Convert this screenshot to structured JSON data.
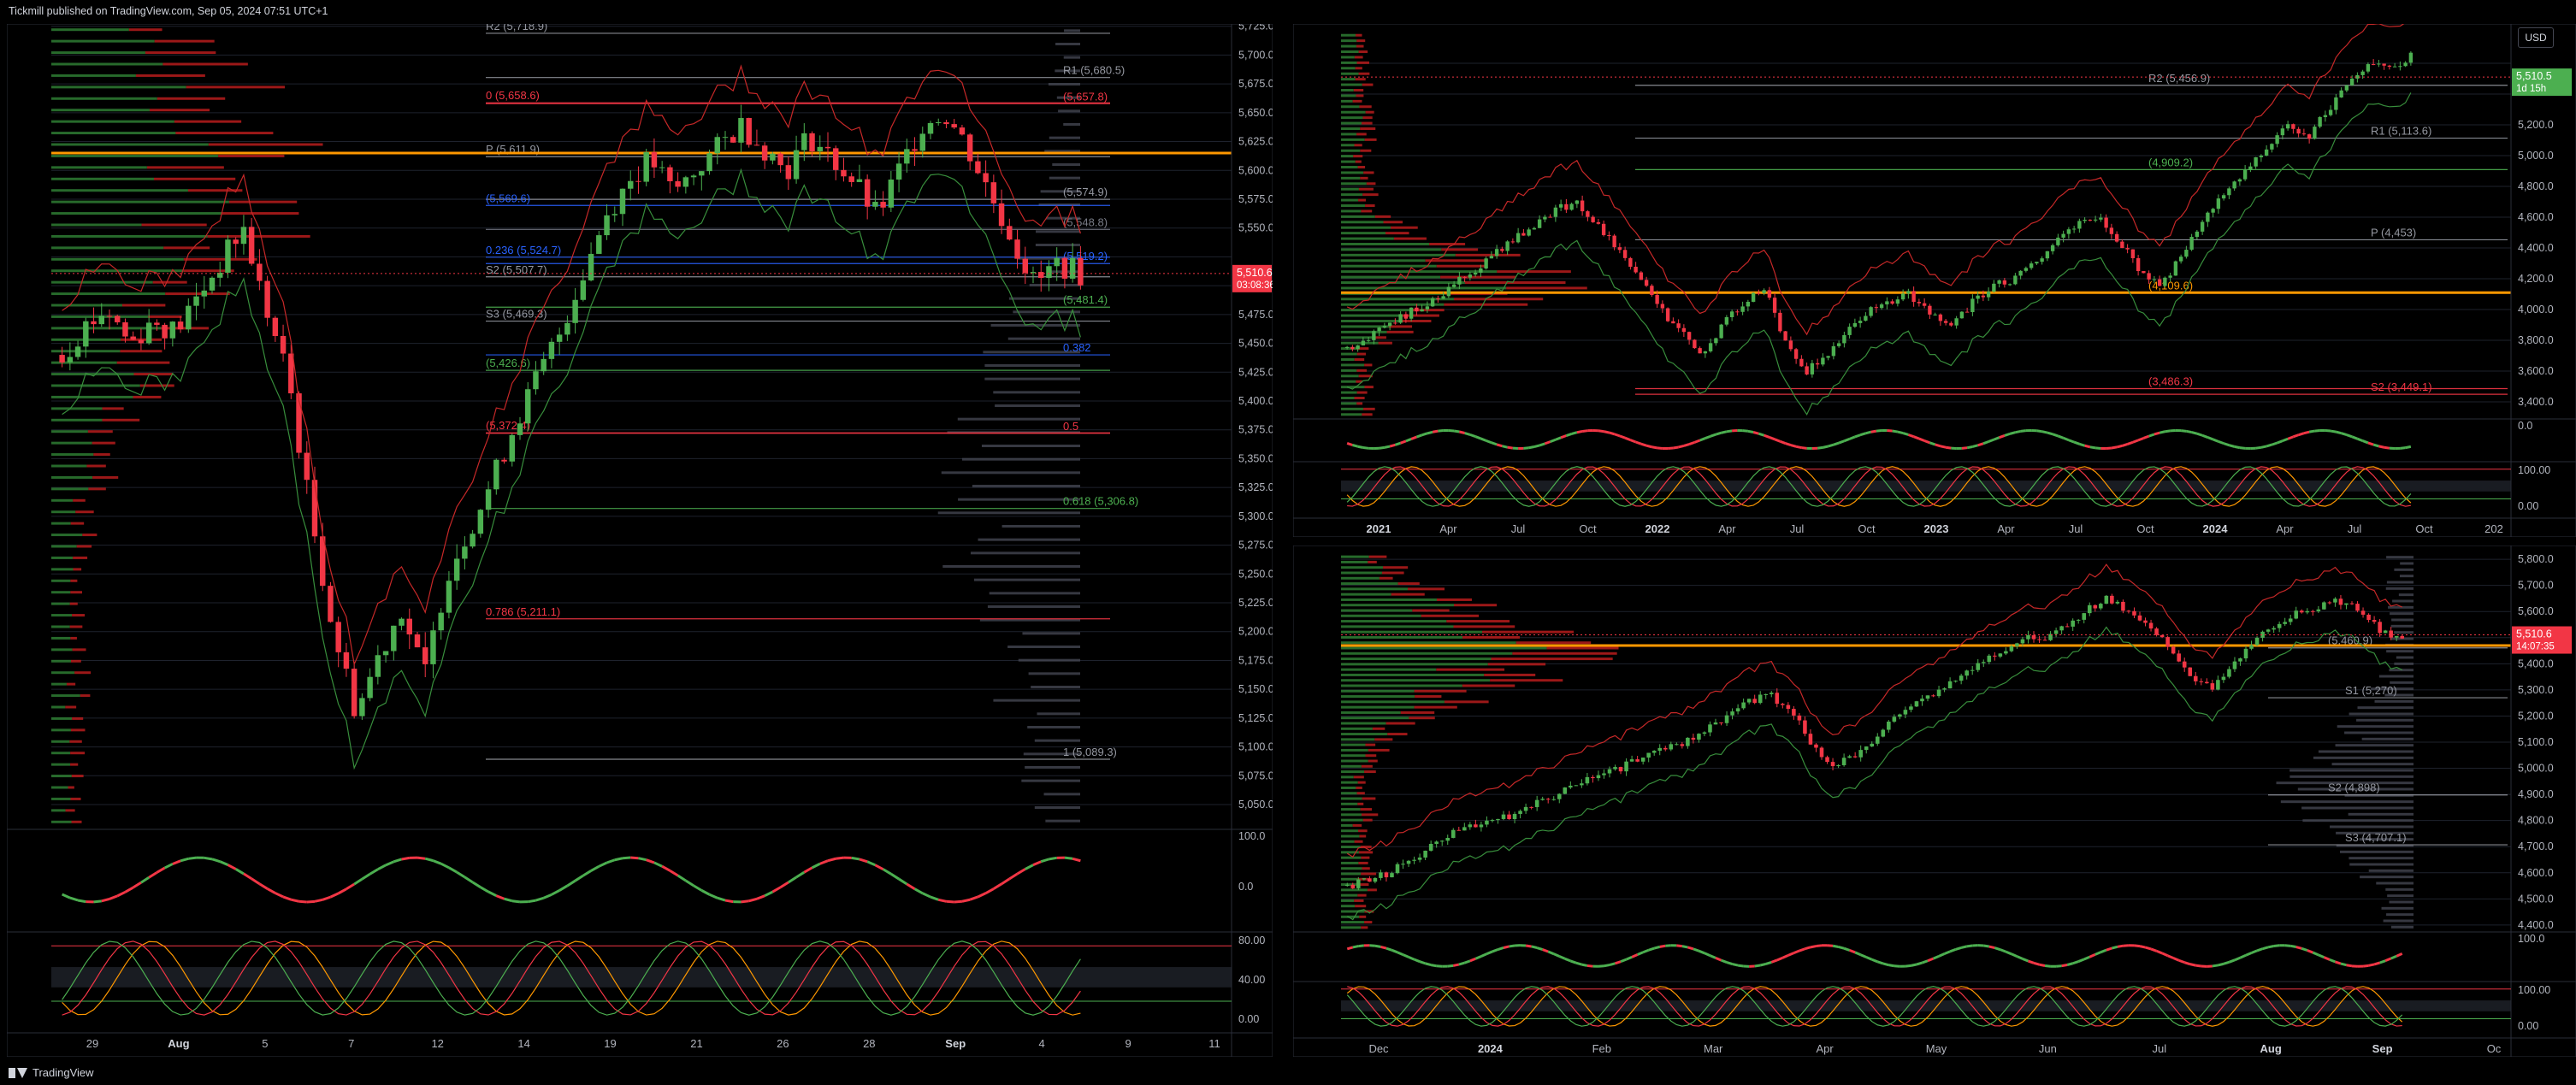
{
  "header": {
    "published_text": "Tickmill published on TradingView.com, Sep 05, 2024 07:51 UTC+1"
  },
  "footer": {
    "brand": "TradingView",
    "logo_icon": "tradingview-logo-icon"
  },
  "top_right": {
    "currency_button": "USD"
  },
  "colors": {
    "bg": "#000000",
    "bull": "#4caf50",
    "bear": "#f23645",
    "orange": "#ff9800",
    "grid": "#1e222d",
    "gray": "#787b86",
    "blue": "#2962ff"
  },
  "chart_data": [
    {
      "id": "left",
      "type": "candlestick",
      "title": "",
      "y_ticks": [
        5725,
        5700,
        5675,
        5650,
        5625,
        5600,
        5575,
        5550,
        5525,
        5500,
        5475,
        5450,
        5425,
        5400,
        5375,
        5350,
        5325,
        5300,
        5275,
        5250,
        5225,
        5200,
        5175,
        5150,
        5125,
        5100,
        5075,
        5050
      ],
      "y_tick_labels": [
        "5,725.0",
        "5,700.0",
        "5,675.0",
        "5,650.0",
        "5,625.0",
        "5,600.0",
        "5,575.0",
        "5,550.0",
        "5,525.0",
        "5,500.0",
        "5,475.0",
        "5,450.0",
        "5,425.0",
        "5,400.0",
        "5,375.0",
        "5,350.0",
        "5,325.0",
        "5,300.0",
        "5,275.0",
        "5,250.0",
        "5,225.0",
        "5,200.0",
        "5,175.0",
        "5,150.0",
        "5,125.0",
        "5,100.0",
        "5,075.0",
        "5,050.0"
      ],
      "ylim": [
        5030,
        5727
      ],
      "x_tick_labels": [
        "29",
        "Aug",
        "5",
        "7",
        "12",
        "14",
        "19",
        "21",
        "26",
        "28",
        "Sep",
        "4",
        "9",
        "11"
      ],
      "price_label": "5,510.6",
      "countdown": "03:08:36",
      "price_value": 5510.6,
      "close_path": [
        5440,
        5465,
        5480,
        5450,
        5470,
        5460,
        5490,
        5520,
        5550,
        5480,
        5420,
        5300,
        5200,
        5130,
        5180,
        5220,
        5160,
        5250,
        5290,
        5330,
        5380,
        5420,
        5460,
        5510,
        5560,
        5590,
        5610,
        5580,
        5600,
        5620,
        5640,
        5620,
        5600,
        5630,
        5610,
        5590,
        5560,
        5600,
        5640,
        5650,
        5620,
        5580,
        5540,
        5500,
        5520,
        5510
      ],
      "levels": [
        {
          "label": "R2 (5,718.9)",
          "value": 5718.9,
          "color": "#9598a1"
        },
        {
          "label": "R1 (5,680.5)",
          "value": 5680.5,
          "color": "#9598a1"
        },
        {
          "label": "0 (5,658.6)",
          "value": 5658.6,
          "color": "#f23645"
        },
        {
          "label": "(5,657.8)",
          "value": 5657.8,
          "color": "#f23645"
        },
        {
          "label": "P (5,611.9)",
          "value": 5611.9,
          "color": "#9598a1"
        },
        {
          "label": "(5,574.9)",
          "value": 5574.9,
          "color": "#9598a1"
        },
        {
          "label": "(5,569.6)",
          "value": 5569.6,
          "color": "#2962ff"
        },
        {
          "label": "(5,548.8)",
          "value": 5548.8,
          "color": "#787b86"
        },
        {
          "label": "0.236 (5,524.7)",
          "value": 5524.7,
          "color": "#2962ff"
        },
        {
          "label": "(5,519.2)",
          "value": 5519.2,
          "color": "#2962ff"
        },
        {
          "label": "S2 (5,507.7)",
          "value": 5507.7,
          "color": "#9598a1"
        },
        {
          "label": "(5,481.4)",
          "value": 5481.4,
          "color": "#4caf50"
        },
        {
          "label": "S3 (5,469.3)",
          "value": 5469.3,
          "color": "#9598a1"
        },
        {
          "label": "0.382",
          "value": 5440,
          "color": "#2962ff"
        },
        {
          "label": "(5,426.6)",
          "value": 5426.6,
          "color": "#4caf50"
        },
        {
          "label": "0.5",
          "value": 5372,
          "color": "#f23645"
        },
        {
          "label": "(5,372.4)",
          "value": 5372.4,
          "color": "#f23645"
        },
        {
          "label": "0.618 (5,306.8)",
          "value": 5306.8,
          "color": "#4caf50"
        },
        {
          "label": "0.786 (5,211.1)",
          "value": 5211.1,
          "color": "#f23645"
        },
        {
          "label": "1 (5,089.3)",
          "value": 5089.3,
          "color": "#9598a1"
        }
      ],
      "rsi_ticks": [
        "100.0",
        "0.0"
      ],
      "stoch_ticks": [
        "80.00",
        "40.00",
        "0.00"
      ]
    },
    {
      "id": "top-right",
      "type": "candlestick",
      "title": "",
      "y_ticks": [
        5600,
        5400,
        5200,
        5000,
        4800,
        4600,
        4400,
        4200,
        4000,
        3800,
        3600,
        3400
      ],
      "y_tick_labels": [
        "5,600.0",
        "5,400.0",
        "5,200.0",
        "5,000.0",
        "4,800.0",
        "4,600.0",
        "4,400.0",
        "4,200.0",
        "4,000.0",
        "3,800.0",
        "3,600.0",
        "3,400.0"
      ],
      "ylim": [
        3300,
        5800
      ],
      "x_tick_labels": [
        "2021",
        "Apr",
        "Jul",
        "Oct",
        "2022",
        "Apr",
        "Jul",
        "Oct",
        "2023",
        "Apr",
        "Jul",
        "Oct",
        "2024",
        "Apr",
        "Jul",
        "Oct",
        "202"
      ],
      "price_label": "5,510.5",
      "countdown": "1d 15h",
      "price_value": 5510.5,
      "close_path": [
        3750,
        3820,
        3900,
        3980,
        4050,
        4150,
        4250,
        4350,
        4450,
        4550,
        4650,
        4700,
        4550,
        4400,
        4200,
        4000,
        3850,
        3700,
        3900,
        4050,
        4150,
        3800,
        3600,
        3700,
        3850,
        4000,
        4050,
        4100,
        3950,
        3900,
        4050,
        4150,
        4200,
        4300,
        4450,
        4550,
        4600,
        4450,
        4250,
        4150,
        4350,
        4550,
        4750,
        4900,
        5050,
        5200,
        5100,
        5300,
        5450,
        5600,
        5550,
        5650
      ],
      "levels": [
        {
          "label": "R2 (5,456.9)",
          "value": 5456.9,
          "color": "#9598a1"
        },
        {
          "label": "R1 (5,113.6)",
          "value": 5113.6,
          "color": "#9598a1"
        },
        {
          "label": "(4,909.2)",
          "value": 4909.2,
          "color": "#4caf50"
        },
        {
          "label": "P (4,453)",
          "value": 4453,
          "color": "#9598a1"
        },
        {
          "label": "(4,109.6)",
          "value": 4109.6,
          "color": "#ff9800"
        },
        {
          "label": "S2 (3,449.1)",
          "value": 3449.1,
          "color": "#f23645"
        },
        {
          "label": "(3,486.3)",
          "value": 3486.3,
          "color": "#f23645"
        }
      ],
      "rsi_ticks": [
        "0.0"
      ],
      "stoch_ticks": [
        "100.00",
        "0.00"
      ]
    },
    {
      "id": "bottom-right",
      "type": "candlestick",
      "title": "",
      "y_ticks": [
        5800,
        5700,
        5600,
        5500,
        5400,
        5300,
        5200,
        5100,
        5000,
        4900,
        4800,
        4700,
        4600,
        4500,
        4400
      ],
      "y_tick_labels": [
        "5,800.0",
        "5,700.0",
        "5,600.0",
        "5,500.0",
        "5,400.0",
        "5,300.0",
        "5,200.0",
        "5,100.0",
        "5,000.0",
        "4,900.0",
        "4,800.0",
        "4,700.0",
        "4,600.0",
        "4,500.0",
        "4,400.0"
      ],
      "ylim": [
        4380,
        5820
      ],
      "x_tick_labels": [
        "Dec",
        "2024",
        "Feb",
        "Mar",
        "Apr",
        "May",
        "Jun",
        "Jul",
        "Aug",
        "Sep",
        "Oc"
      ],
      "price_label": "5,510.6",
      "countdown": "14:07:35",
      "price_value": 5510.6,
      "close_path": [
        4550,
        4570,
        4600,
        4650,
        4700,
        4750,
        4780,
        4800,
        4830,
        4870,
        4900,
        4950,
        4980,
        5000,
        5050,
        5080,
        5100,
        5150,
        5200,
        5250,
        5280,
        5230,
        5100,
        5000,
        5050,
        5100,
        5200,
        5250,
        5300,
        5350,
        5400,
        5450,
        5500,
        5480,
        5550,
        5600,
        5650,
        5600,
        5550,
        5450,
        5350,
        5300,
        5400,
        5500,
        5550,
        5600,
        5620,
        5640,
        5600,
        5520,
        5510
      ],
      "levels": [
        {
          "label": "(5,460.9)",
          "value": 5460.9,
          "color": "#9598a1"
        },
        {
          "label": "S1 (5,270)",
          "value": 5270,
          "color": "#9598a1"
        },
        {
          "label": "S2 (4,898)",
          "value": 4898,
          "color": "#9598a1"
        },
        {
          "label": "S3 (4,707.1)",
          "value": 4707.1,
          "color": "#9598a1"
        }
      ],
      "rsi_ticks": [
        "100.0"
      ],
      "stoch_ticks": [
        "100.00",
        "0.00"
      ]
    }
  ]
}
